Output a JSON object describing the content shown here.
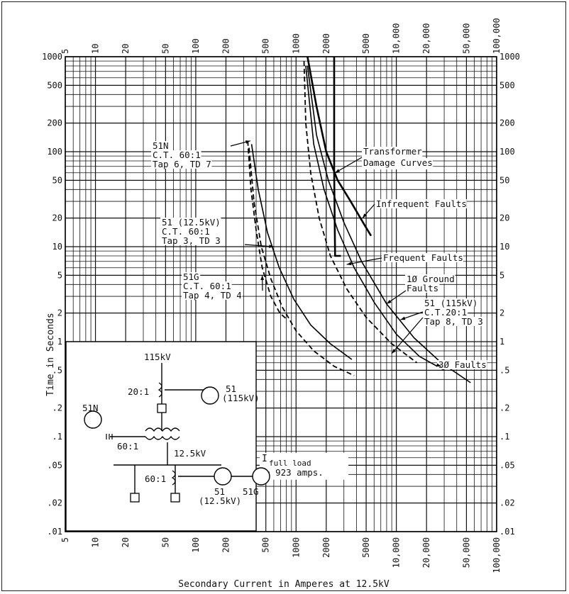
{
  "chart_data": {
    "type": "line",
    "title": "",
    "xlabel": "Secondary Current in Amperes at 12.5kV",
    "ylabel": "Time in Seconds",
    "x_scale": "log",
    "y_scale": "log",
    "xlim": [
      5,
      100000
    ],
    "ylim": [
      0.01,
      1000
    ],
    "x_ticks_bottom": [
      "5",
      "10",
      "20",
      "50",
      "100",
      "200",
      "500",
      "1000",
      "2000",
      "5000",
      "10,000",
      "20,000",
      "50,000",
      "100,000"
    ],
    "x_ticks_top": [
      "5",
      "10",
      "20",
      "50",
      "100",
      "200",
      "500",
      "1000",
      "2000",
      "5000",
      "10,000",
      "20,000",
      "50,000",
      "100,000"
    ],
    "y_ticks_left": [
      "1000",
      "500",
      "200",
      "100",
      "50",
      "20",
      "10",
      "5",
      "2",
      "1",
      ".5",
      ".2",
      ".1",
      ".05",
      ".02",
      ".01"
    ],
    "y_ticks_right": [
      "1000",
      "500",
      "200",
      "100",
      "50",
      "20",
      "10",
      "5",
      "2",
      "1",
      ".5",
      ".2",
      ".1",
      ".05",
      ".02",
      ".01"
    ],
    "grid": true,
    "series": [
      {
        "name": "51N C.T. 60:1 Tap 6, TD 7",
        "style": "dashed",
        "x": [
          330,
          355,
          400,
          460,
          560,
          690,
          820
        ],
        "y": [
          130,
          40,
          15,
          6,
          3,
          2,
          1.7
        ]
      },
      {
        "name": "51 (12.5kV) C.T. 60:1 Tap 3, TD 3",
        "style": "solid",
        "x": [
          360,
          420,
          520,
          680,
          950,
          1400,
          2200,
          3600
        ],
        "y": [
          120,
          40,
          14,
          6,
          2.8,
          1.5,
          0.95,
          0.65
        ]
      },
      {
        "name": "51G C.T. 60:1 Tap 4, TD 4",
        "style": "dashed",
        "x": [
          340,
          380,
          450,
          560,
          730,
          1000,
          1500,
          2400,
          3800
        ],
        "y": [
          110,
          30,
          10,
          4.6,
          2.3,
          1.3,
          0.8,
          0.55,
          0.44
        ]
      },
      {
        "name": "51 (115kV) C.T.20:1 Tap 8, TD 3",
        "style": "dashed",
        "x": [
          1200,
          1250,
          1400,
          1700,
          2200,
          3200,
          5000,
          9000,
          16000
        ],
        "y": [
          900,
          200,
          60,
          20,
          8,
          3.6,
          1.8,
          0.95,
          0.6
        ]
      },
      {
        "name": "Infrequent Faults",
        "style": "heavy",
        "x": [
          1300,
          1600,
          2000,
          2600,
          3500,
          4800,
          5600
        ],
        "y": [
          1000,
          300,
          100,
          50,
          30,
          17,
          13
        ]
      },
      {
        "name": "Frequent Faults",
        "style": "heavy",
        "x": [
          2400,
          2400,
          2450,
          2600,
          2800
        ],
        "y": [
          1000,
          60,
          8,
          8,
          8
        ]
      },
      {
        "name": "1Ø Ground Faults",
        "style": "solid",
        "x": [
          1250,
          1500,
          1900,
          2600,
          3800,
          6000,
          10000,
          17000,
          30000
        ],
        "y": [
          800,
          120,
          40,
          15,
          6,
          2.6,
          1.2,
          0.7,
          0.5
        ]
      },
      {
        "name": "3Ø Faults",
        "style": "solid",
        "x": [
          1300,
          1600,
          2100,
          3000,
          4500,
          8000,
          15000,
          28000,
          55000
        ],
        "y": [
          800,
          150,
          50,
          18,
          7,
          2.5,
          1.1,
          0.6,
          0.37
        ]
      }
    ],
    "labels": {
      "n51n": [
        "51N",
        "C.T. 60:1",
        "Tap 6, TD 7"
      ],
      "n51": [
        "51 (12.5kV)",
        "C.T. 60:1",
        "Tap 3, TD 3"
      ],
      "n51g": [
        "51G",
        "C.T. 60:1",
        "Tap 4, TD 4"
      ],
      "xfmr": [
        "Transformer",
        "Damage Curves"
      ],
      "infrequent": "Infrequent Faults",
      "frequent": "Frequent Faults",
      "ground": [
        "1Ø Ground",
        "Faults"
      ],
      "n51hv": [
        "51 (115kV)",
        "C.T.20:1",
        "Tap 8, TD 3"
      ],
      "three_phase": "3Ø Faults"
    },
    "inset": {
      "kv115": "115kV",
      "ct20": "20:1",
      "relay51hv": [
        "51",
        "(115kV)"
      ],
      "relay51n": "51N",
      "ct60a": "60:1",
      "kv125": "12.5kV",
      "ct60b": "60:1",
      "relay51lv": [
        "51",
        "(12.5kV)"
      ],
      "relay51g": "51G"
    },
    "full_load": [
      "I",
      "full load",
      "= 923 amps."
    ]
  }
}
